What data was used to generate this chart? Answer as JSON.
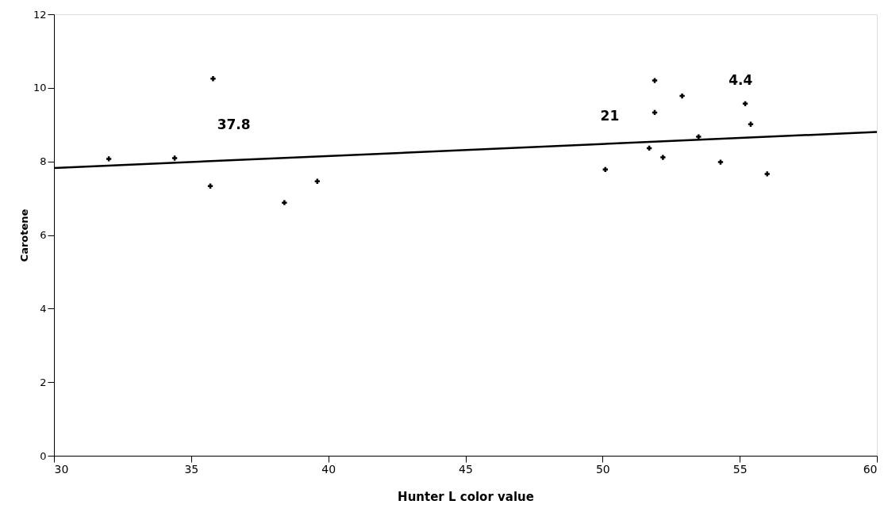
{
  "chart_data": {
    "type": "scatter",
    "xlabel": "Hunter L color value",
    "ylabel": "Carotene",
    "xlim": [
      30,
      60
    ],
    "xticks": [
      30,
      35,
      40,
      45,
      50,
      55,
      60
    ],
    "ylim": [
      0,
      12
    ],
    "yticks": [
      0,
      2,
      4,
      6,
      8,
      10,
      12
    ],
    "grid": false,
    "series": [
      {
        "marker": "cross",
        "color": "#000000",
        "x": [
          32.0,
          34.4,
          35.8,
          35.7,
          38.4,
          39.6,
          50.1,
          51.7,
          51.9,
          51.9,
          52.2,
          52.9,
          53.5,
          54.3,
          55.2,
          55.4,
          56.0
        ],
        "values": [
          8.07,
          8.09,
          10.25,
          7.33,
          6.88,
          7.46,
          7.78,
          8.36,
          10.2,
          9.33,
          8.11,
          9.78,
          8.67,
          7.98,
          9.57,
          9.01,
          7.66
        ]
      },
      {
        "type": "line",
        "marker": "none",
        "color": "#000000",
        "x": [
          30,
          60
        ],
        "values": [
          7.82,
          8.8
        ]
      }
    ],
    "annotations": [
      "37.8",
      "21",
      "4.4"
    ]
  }
}
